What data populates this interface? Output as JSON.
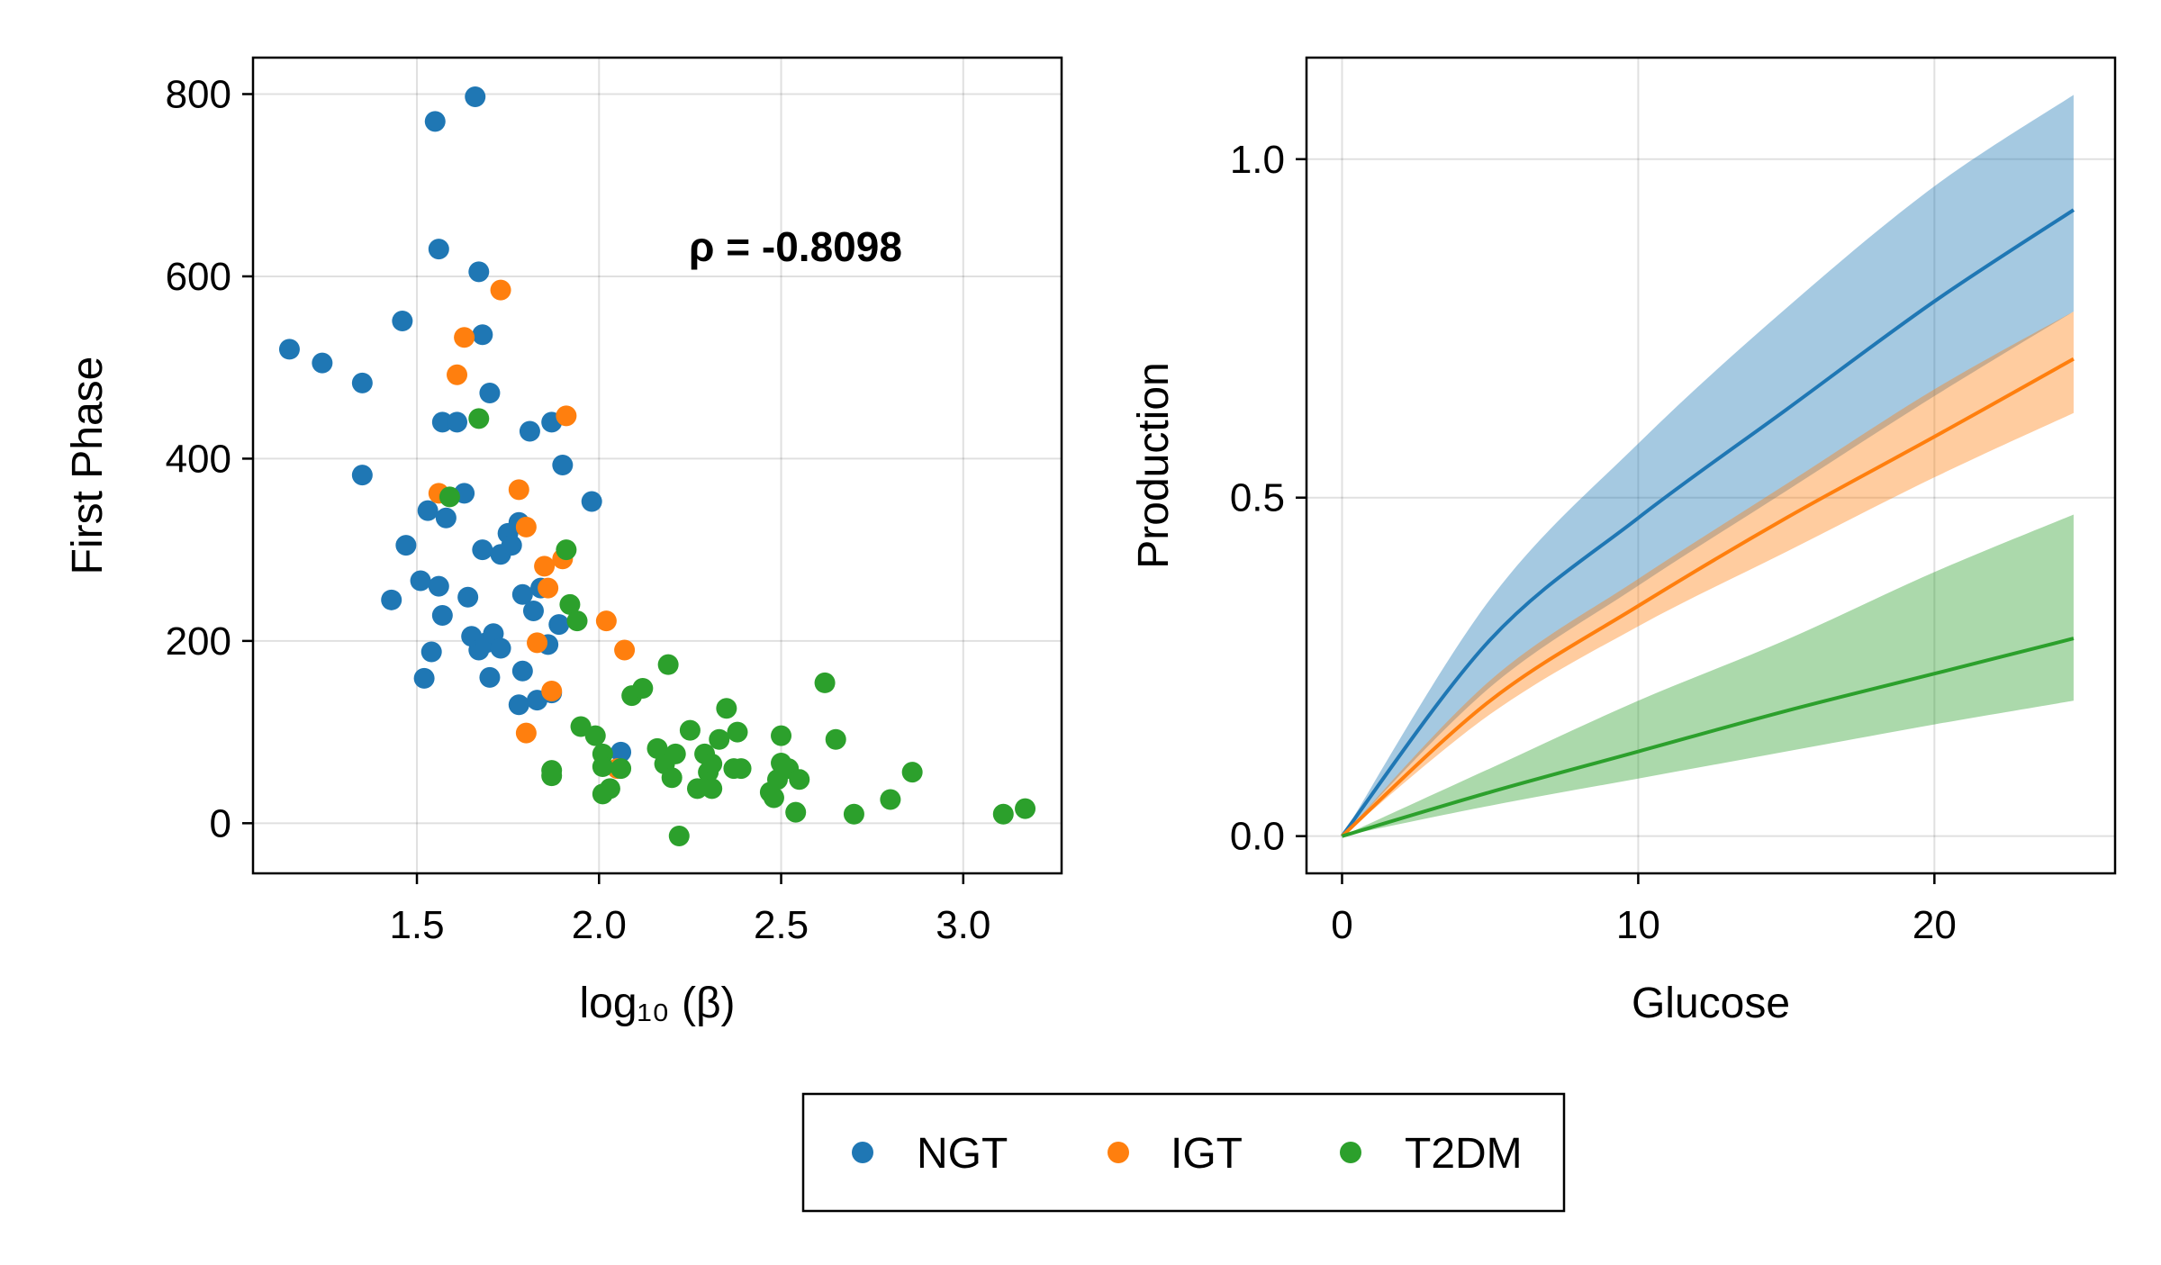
{
  "colors": {
    "NGT": "#1f77b4",
    "IGT": "#ff7f0e",
    "T2DM": "#2ca02c"
  },
  "legend": {
    "entries": [
      "NGT",
      "IGT",
      "T2DM"
    ]
  },
  "chart_data": [
    {
      "type": "scatter",
      "xlabel": "log₁₀ (β)",
      "ylabel": "First Phase",
      "xlim": [
        1.05,
        3.27
      ],
      "ylim": [
        -55,
        840
      ],
      "xticks": [
        1.5,
        2.0,
        2.5,
        3.0
      ],
      "xtick_labels": [
        "1.5",
        "2.0",
        "2.5",
        "3.0"
      ],
      "yticks": [
        0,
        200,
        400,
        600,
        800
      ],
      "ytick_labels": [
        "0",
        "200",
        "400",
        "600",
        "800"
      ],
      "grid": true,
      "annotation": "ρ = -0.8098",
      "series": [
        {
          "name": "NGT",
          "points": [
            [
              1.15,
              520
            ],
            [
              1.24,
              505
            ],
            [
              1.35,
              483
            ],
            [
              1.35,
              382
            ],
            [
              1.43,
              245
            ],
            [
              1.46,
              551
            ],
            [
              1.47,
              305
            ],
            [
              1.51,
              266
            ],
            [
              1.52,
              159
            ],
            [
              1.53,
              343
            ],
            [
              1.54,
              188
            ],
            [
              1.55,
              770
            ],
            [
              1.56,
              630
            ],
            [
              1.56,
              260
            ],
            [
              1.57,
              228
            ],
            [
              1.57,
              440
            ],
            [
              1.58,
              335
            ],
            [
              1.61,
              440
            ],
            [
              1.63,
              362
            ],
            [
              1.64,
              248
            ],
            [
              1.65,
              205
            ],
            [
              1.66,
              797
            ],
            [
              1.67,
              605
            ],
            [
              1.67,
              190
            ],
            [
              1.68,
              536
            ],
            [
              1.68,
              300
            ],
            [
              1.69,
              198
            ],
            [
              1.7,
              472
            ],
            [
              1.7,
              160
            ],
            [
              1.71,
              208
            ],
            [
              1.73,
              192
            ],
            [
              1.73,
              295
            ],
            [
              1.75,
              318
            ],
            [
              1.76,
              305
            ],
            [
              1.78,
              330
            ],
            [
              1.78,
              130
            ],
            [
              1.79,
              167
            ],
            [
              1.79,
              251
            ],
            [
              1.81,
              430
            ],
            [
              1.82,
              233
            ],
            [
              1.83,
              135
            ],
            [
              1.84,
              258
            ],
            [
              1.86,
              196
            ],
            [
              1.87,
              143
            ],
            [
              1.87,
              440
            ],
            [
              1.89,
              218
            ],
            [
              1.9,
              393
            ],
            [
              1.98,
              353
            ],
            [
              2.06,
              78
            ]
          ]
        },
        {
          "name": "IGT",
          "points": [
            [
              1.56,
              362
            ],
            [
              1.61,
              492
            ],
            [
              1.63,
              533
            ],
            [
              1.73,
              585
            ],
            [
              1.78,
              366
            ],
            [
              1.8,
              325
            ],
            [
              1.83,
              198
            ],
            [
              1.85,
              282
            ],
            [
              1.86,
              258
            ],
            [
              1.87,
              145
            ],
            [
              1.9,
              290
            ],
            [
              1.91,
              447
            ],
            [
              1.8,
              99
            ],
            [
              2.02,
              222
            ],
            [
              2.05,
              60
            ],
            [
              2.07,
              190
            ]
          ]
        },
        {
          "name": "T2DM",
          "points": [
            [
              1.59,
              358
            ],
            [
              1.67,
              444
            ],
            [
              1.87,
              58
            ],
            [
              1.87,
              52
            ],
            [
              1.91,
              300
            ],
            [
              1.92,
              240
            ],
            [
              1.94,
              222
            ],
            [
              1.95,
              106
            ],
            [
              1.99,
              96
            ],
            [
              2.01,
              76
            ],
            [
              2.01,
              62
            ],
            [
              2.01,
              32
            ],
            [
              2.03,
              38
            ],
            [
              2.06,
              60
            ],
            [
              2.09,
              140
            ],
            [
              2.12,
              148
            ],
            [
              2.16,
              82
            ],
            [
              2.18,
              65
            ],
            [
              2.19,
              174
            ],
            [
              2.2,
              50
            ],
            [
              2.21,
              76
            ],
            [
              2.22,
              -14
            ],
            [
              2.25,
              102
            ],
            [
              2.27,
              38
            ],
            [
              2.29,
              76
            ],
            [
              2.3,
              56
            ],
            [
              2.31,
              38
            ],
            [
              2.31,
              65
            ],
            [
              2.33,
              92
            ],
            [
              2.35,
              126
            ],
            [
              2.37,
              60
            ],
            [
              2.38,
              100
            ],
            [
              2.39,
              60
            ],
            [
              2.47,
              34
            ],
            [
              2.48,
              28
            ],
            [
              2.49,
              48
            ],
            [
              2.5,
              66
            ],
            [
              2.5,
              96
            ],
            [
              2.52,
              60
            ],
            [
              2.54,
              12
            ],
            [
              2.55,
              48
            ],
            [
              2.62,
              154
            ],
            [
              2.65,
              92
            ],
            [
              2.7,
              10
            ],
            [
              2.8,
              26
            ],
            [
              2.86,
              56
            ],
            [
              3.11,
              10
            ],
            [
              3.17,
              16
            ]
          ]
        }
      ]
    },
    {
      "type": "line",
      "xlabel": "Glucose",
      "ylabel": "Production",
      "xlim": [
        -1.2,
        26.1
      ],
      "ylim": [
        -0.055,
        1.15
      ],
      "xticks": [
        0,
        10,
        20
      ],
      "xtick_labels": [
        "0",
        "10",
        "20"
      ],
      "yticks": [
        0.0,
        0.5,
        1.0
      ],
      "ytick_labels": [
        "0.0",
        "0.5",
        "1.0"
      ],
      "grid": true,
      "band_opacity": 0.4,
      "x": [
        0,
        5,
        10,
        15,
        20,
        24.7
      ],
      "series": [
        {
          "name": "NGT",
          "mean": [
            0,
            0.29,
            0.47,
            0.63,
            0.79,
            0.925
          ],
          "lower": [
            0,
            0.22,
            0.37,
            0.51,
            0.65,
            0.775
          ],
          "upper": [
            0,
            0.35,
            0.58,
            0.78,
            0.96,
            1.095
          ]
        },
        {
          "name": "IGT",
          "mean": [
            0,
            0.2,
            0.34,
            0.47,
            0.59,
            0.705
          ],
          "lower": [
            0,
            0.18,
            0.31,
            0.42,
            0.53,
            0.625
          ],
          "upper": [
            0,
            0.23,
            0.38,
            0.52,
            0.66,
            0.775
          ]
        },
        {
          "name": "T2DM",
          "mean": [
            0,
            0.065,
            0.125,
            0.185,
            0.24,
            0.292
          ],
          "lower": [
            0,
            0.045,
            0.085,
            0.125,
            0.165,
            0.2
          ],
          "upper": [
            0,
            0.1,
            0.2,
            0.29,
            0.39,
            0.475
          ]
        }
      ]
    }
  ]
}
